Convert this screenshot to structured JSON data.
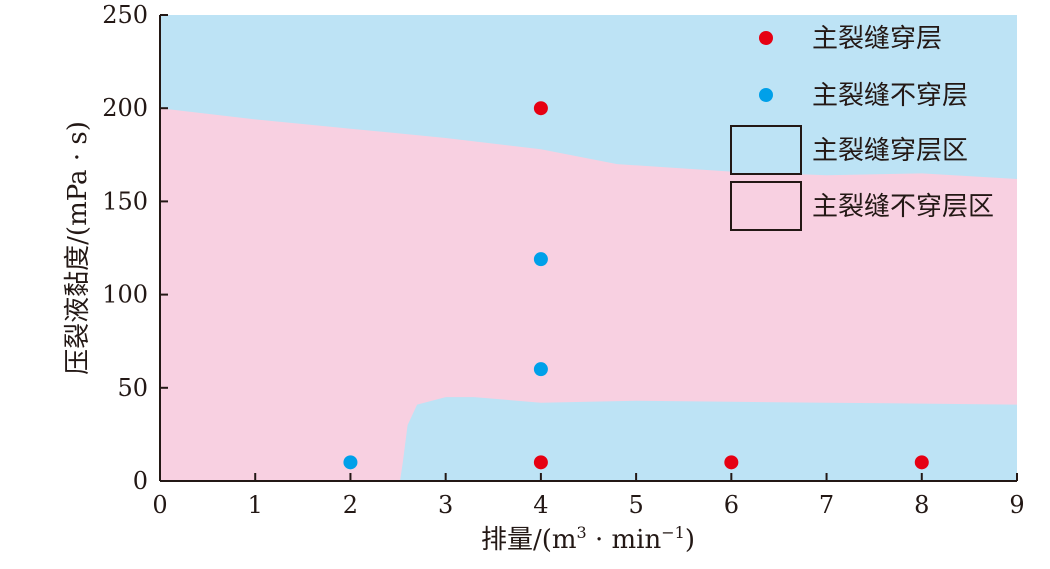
{
  "chart_data": {
    "type": "scatter",
    "title": "",
    "xlabel": "排量/(m³·min⁻¹)",
    "xlabel_parts": {
      "base": "排量/(m",
      "sup1": "3",
      "mid": " · min",
      "sup2": "−1",
      "end": ")"
    },
    "ylabel": "压裂液黏度/(mPa · s)",
    "xlim": [
      0,
      9
    ],
    "ylim": [
      0,
      250
    ],
    "xticks": [
      0,
      1,
      2,
      3,
      4,
      5,
      6,
      7,
      8,
      9
    ],
    "yticks": [
      0,
      50,
      100,
      150,
      200,
      250
    ],
    "grid": false,
    "legend_position": "top-right",
    "series": [
      {
        "name": "主裂缝穿层",
        "color": "#e60012",
        "points": [
          [
            4,
            200
          ],
          [
            4,
            10
          ],
          [
            6,
            10
          ],
          [
            8,
            10
          ]
        ]
      },
      {
        "name": "主裂缝不穿层",
        "color": "#00a0e9",
        "points": [
          [
            2,
            10
          ],
          [
            4,
            119
          ],
          [
            4,
            60
          ]
        ]
      }
    ],
    "regions": [
      {
        "name": "主裂缝穿层区",
        "color": "#bde3f5",
        "role": "background"
      },
      {
        "name": "主裂缝不穿层区",
        "color": "#f8d0e1",
        "upper_boundary": [
          [
            0,
            200
          ],
          [
            1,
            194
          ],
          [
            2,
            189
          ],
          [
            3,
            184
          ],
          [
            4,
            178
          ],
          [
            4.8,
            170
          ],
          [
            6,
            166
          ],
          [
            7,
            164
          ],
          [
            8,
            165
          ],
          [
            9,
            162
          ]
        ],
        "lower_boundary": [
          [
            2.52,
            0
          ],
          [
            2.55,
            10
          ],
          [
            2.6,
            30
          ],
          [
            2.7,
            41
          ],
          [
            3,
            45
          ],
          [
            3.3,
            45
          ],
          [
            4,
            42
          ],
          [
            5,
            43
          ],
          [
            6,
            42.5
          ],
          [
            7,
            42
          ],
          [
            8,
            41.5
          ],
          [
            9,
            41
          ]
        ]
      }
    ]
  }
}
